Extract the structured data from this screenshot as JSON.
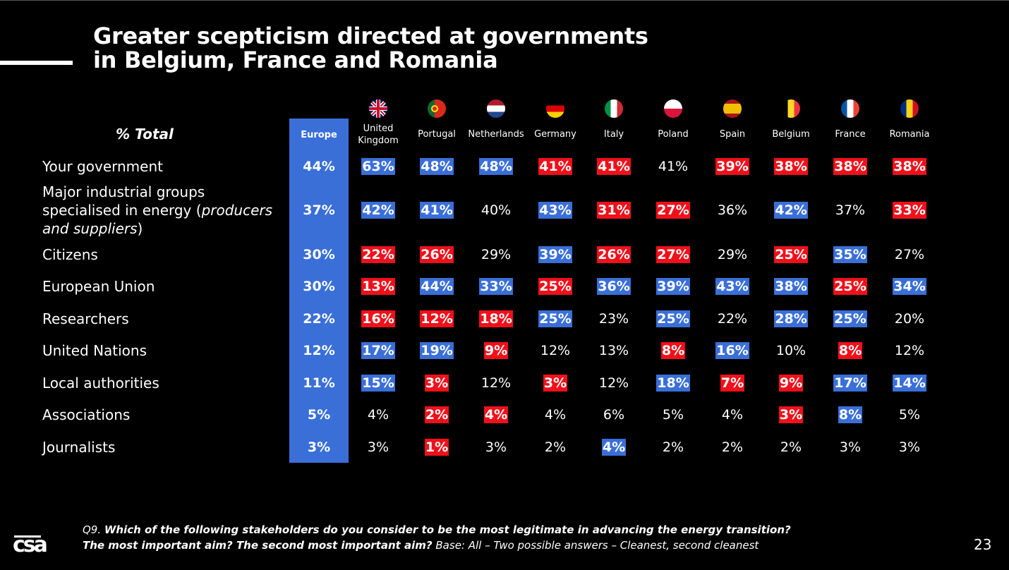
{
  "title_lines": [
    "Greater scepticism directed at governments",
    "in Belgium, France and Romania"
  ],
  "total_label": "% Total",
  "europe_label": "Europe",
  "colors": {
    "high": "#3a6fd8",
    "low": "#f0101a",
    "europe_column": "#3a6fd8",
    "background": "#000000"
  },
  "countries": [
    {
      "name": "United Kingdom",
      "flag": "uk-flag-icon"
    },
    {
      "name": "Portugal",
      "flag": "portugal-flag-icon"
    },
    {
      "name": "Netherlands",
      "flag": "netherlands-flag-icon"
    },
    {
      "name": "Germany",
      "flag": "germany-flag-icon"
    },
    {
      "name": "Italy",
      "flag": "italy-flag-icon"
    },
    {
      "name": "Poland",
      "flag": "poland-flag-icon"
    },
    {
      "name": "Spain",
      "flag": "spain-flag-icon"
    },
    {
      "name": "Belgium",
      "flag": "belgium-flag-icon"
    },
    {
      "name": "France",
      "flag": "france-flag-icon"
    },
    {
      "name": "Romania",
      "flag": "romania-flag-icon"
    }
  ],
  "chart_data": {
    "type": "table",
    "columns": [
      "Europe",
      "United Kingdom",
      "Portugal",
      "Netherlands",
      "Germany",
      "Italy",
      "Poland",
      "Spain",
      "Belgium",
      "France",
      "Romania"
    ],
    "rows": [
      {
        "label": [
          "Your government"
        ],
        "europe": "44%",
        "values": [
          "63%",
          "48%",
          "48%",
          "41%",
          "41%",
          "41%",
          "39%",
          "38%",
          "38%",
          "38%"
        ],
        "highlight": [
          "hi",
          "hi",
          "hi",
          "lo",
          "lo",
          "none",
          "lo",
          "lo",
          "lo",
          "lo"
        ]
      },
      {
        "label": [
          "Major industrial groups",
          "specialised in energy (producers",
          "and suppliers)"
        ],
        "europe": "37%",
        "values": [
          "42%",
          "41%",
          "40%",
          "43%",
          "31%",
          "27%",
          "36%",
          "42%",
          "37%",
          "33%"
        ],
        "highlight": [
          "hi",
          "hi",
          "none",
          "hi",
          "lo",
          "lo",
          "none",
          "hi",
          "none",
          "lo"
        ]
      },
      {
        "label": [
          "Citizens"
        ],
        "europe": "30%",
        "values": [
          "22%",
          "26%",
          "29%",
          "39%",
          "26%",
          "27%",
          "29%",
          "25%",
          "35%",
          "27%"
        ],
        "highlight": [
          "lo",
          "lo",
          "none",
          "hi",
          "lo",
          "lo",
          "none",
          "lo",
          "hi",
          "none"
        ]
      },
      {
        "label": [
          "European Union"
        ],
        "europe": "30%",
        "values": [
          "13%",
          "44%",
          "33%",
          "25%",
          "36%",
          "39%",
          "43%",
          "38%",
          "25%",
          "34%"
        ],
        "highlight": [
          "lo",
          "hi",
          "hi",
          "lo",
          "hi",
          "hi",
          "hi",
          "hi",
          "lo",
          "hi"
        ]
      },
      {
        "label": [
          "Researchers"
        ],
        "europe": "22%",
        "values": [
          "16%",
          "12%",
          "18%",
          "25%",
          "23%",
          "25%",
          "22%",
          "28%",
          "25%",
          "20%"
        ],
        "highlight": [
          "lo",
          "lo",
          "lo",
          "hi",
          "none",
          "hi",
          "none",
          "hi",
          "hi",
          "none"
        ]
      },
      {
        "label": [
          "United Nations"
        ],
        "europe": "12%",
        "values": [
          "17%",
          "19%",
          "9%",
          "12%",
          "13%",
          "8%",
          "16%",
          "10%",
          "8%",
          "12%"
        ],
        "highlight": [
          "hi",
          "hi",
          "lo",
          "none",
          "none",
          "lo",
          "hi",
          "none",
          "lo",
          "none"
        ]
      },
      {
        "label": [
          "Local authorities"
        ],
        "europe": "11%",
        "values": [
          "15%",
          "3%",
          "12%",
          "3%",
          "12%",
          "18%",
          "7%",
          "9%",
          "17%",
          "14%"
        ],
        "highlight": [
          "hi",
          "lo",
          "none",
          "lo",
          "none",
          "hi",
          "lo",
          "lo",
          "hi",
          "hi"
        ]
      },
      {
        "label": [
          "Associations"
        ],
        "europe": "5%",
        "values": [
          "4%",
          "2%",
          "4%",
          "4%",
          "6%",
          "5%",
          "4%",
          "3%",
          "8%",
          "5%"
        ],
        "highlight": [
          "none",
          "lo",
          "lo",
          "none",
          "none",
          "none",
          "none",
          "lo",
          "hi",
          "none"
        ]
      },
      {
        "label": [
          "Journalists"
        ],
        "europe": "3%",
        "values": [
          "3%",
          "1%",
          "3%",
          "2%",
          "4%",
          "2%",
          "2%",
          "2%",
          "3%",
          "3%"
        ],
        "highlight": [
          "none",
          "lo",
          "none",
          "none",
          "hi",
          "none",
          "none",
          "none",
          "none",
          "none"
        ]
      }
    ]
  },
  "footnote": {
    "prefix": "Q9. ",
    "question": "Which of the following stakeholders do you consider to be the most legitimate in advancing the energy transition?",
    "aims": "The most important aim? The second most important aim?",
    "base": " Base: All – Two possible answers – Cleanest, second cleanest"
  },
  "logo_text": "csa",
  "page_number": "23"
}
